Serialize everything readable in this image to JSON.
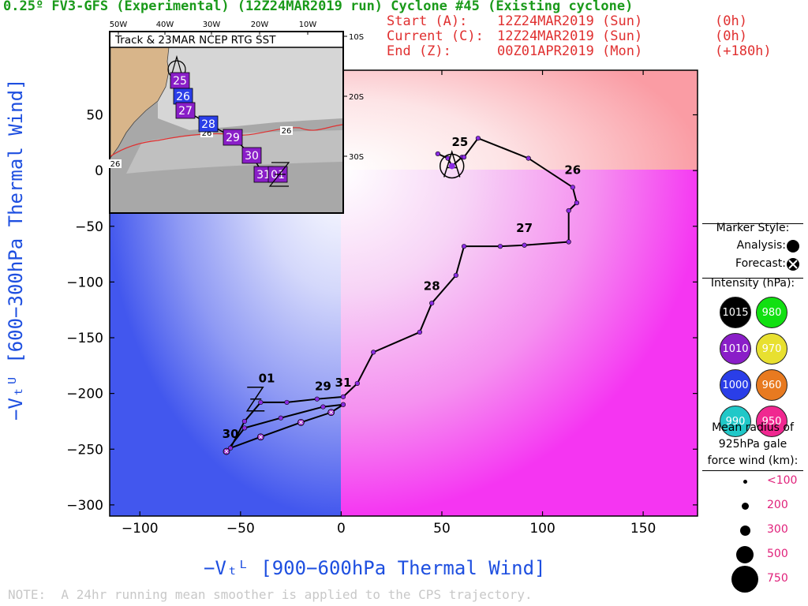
{
  "header": {
    "title": "0.25º FV3-GFS (Experimental) (12Z24MAR2019 run) Cyclone #45 (Existing cyclone)",
    "start_label": "Start (A):",
    "start_value": "12Z24MAR2019 (Sun)",
    "start_offset": "(0h)",
    "current_label": "Current (C):",
    "current_value": "12Z24MAR2019 (Sun)",
    "current_offset": "(0h)",
    "end_label": "End (Z):",
    "end_value": "00Z01APR2019 (Mon)",
    "end_offset": "(+180h)"
  },
  "note": "NOTE:  A 24hr running mean smoother is applied to the CPS trajectory.",
  "colors": {
    "title": "#1a9a1a",
    "info": "#e03030",
    "axis_label": "#1e4fe0",
    "track": "#000000",
    "analysis_marker": "#8a2be2",
    "forecast_marker": "#9b30d0"
  },
  "chart_data": {
    "type": "line",
    "xlabel": "−Vₜᴸ [900−600hPa Thermal Wind]",
    "ylabel": "−Vₜᵁ [600−300hPa Thermal Wind]",
    "xlim": [
      -115,
      177
    ],
    "ylim": [
      -310,
      90
    ],
    "xticks": [
      -100,
      -50,
      0,
      50,
      100,
      150
    ],
    "yticks": [
      50,
      0,
      -50,
      -100,
      -150,
      -200,
      -250,
      -300
    ],
    "xtick_labels": [
      "−100",
      "−50",
      "0",
      "50",
      "100",
      "150"
    ],
    "ytick_labels": [
      "50",
      "0",
      "−50",
      "−100",
      "−150",
      "−200",
      "−250",
      "−300"
    ],
    "series": [
      {
        "points": [
          [
            48,
            15
          ],
          [
            53,
            11
          ],
          [
            55,
            4
          ],
          [
            60,
            12
          ],
          [
            61,
            12
          ],
          [
            68,
            29
          ],
          [
            93,
            11
          ],
          [
            115,
            -15
          ],
          [
            117,
            -29
          ],
          [
            113,
            -36
          ],
          [
            113,
            -64
          ],
          [
            91,
            -67
          ],
          [
            79,
            -68
          ],
          [
            61,
            -68
          ],
          [
            57,
            -94
          ],
          [
            45,
            -119
          ],
          [
            39,
            -145
          ],
          [
            16,
            -163
          ],
          [
            8,
            -191
          ],
          [
            1,
            -203
          ],
          [
            -12,
            -205
          ],
          [
            -27,
            -208
          ],
          [
            -40,
            -208
          ],
          [
            -48,
            -225
          ],
          [
            -55,
            -249
          ],
          [
            -40,
            -239
          ],
          [
            -20,
            -226
          ],
          [
            -5,
            -217
          ],
          [
            1,
            -210
          ],
          [
            -9,
            -212
          ],
          [
            -30,
            -222
          ],
          [
            -48,
            -231
          ],
          [
            -57,
            -252
          ]
        ],
        "forecast_points": [
          [
            -40,
            -239
          ],
          [
            -20,
            -226
          ],
          [
            -5,
            -217
          ],
          [
            -57,
            -252
          ]
        ]
      }
    ],
    "day_labels": [
      {
        "text": "25",
        "x": 59,
        "y": 22
      },
      {
        "text": "26",
        "x": 115,
        "y": -3
      },
      {
        "text": "27",
        "x": 91,
        "y": -55
      },
      {
        "text": "28",
        "x": 45,
        "y": -107
      },
      {
        "text": "29",
        "x": -9,
        "y": -197
      },
      {
        "text": "31",
        "x": 1,
        "y": -194
      },
      {
        "text": "01",
        "x": -37,
        "y": -190
      },
      {
        "text": "30",
        "x": -55,
        "y": -240
      }
    ],
    "markers": {
      "A": {
        "x": 55,
        "y": 4
      },
      "C": {
        "x": 55,
        "y": 4
      },
      "Z": {
        "x": -42,
        "y": -205
      }
    },
    "background": "Quadrant shading: blue (cold core) left of 0 Vₜᴸ, pink (warm core) right; red upper-right, magenta lower-right."
  },
  "inset": {
    "title": "Track & 23MAR NCEP RTG SST",
    "lon_ticks": [
      "50W",
      "40W",
      "30W",
      "20W",
      "10W"
    ],
    "lat_ticks": [
      "10S",
      "20S",
      "30S"
    ],
    "sst_labels": [
      "26",
      "26",
      "26"
    ],
    "track": [
      {
        "day": "25",
        "color": "#8a1ec8"
      },
      {
        "day": "26",
        "color": "#2a3ee8"
      },
      {
        "day": "27",
        "color": "#8a1ec8"
      },
      {
        "day": "28",
        "color": "#2a3ee8"
      },
      {
        "day": "29",
        "color": "#8a1ec8"
      },
      {
        "day": "30",
        "color": "#8a1ec8"
      },
      {
        "day": "31",
        "color": "#8a1ec8"
      },
      {
        "day": "01",
        "color": "#8a1ec8"
      }
    ]
  },
  "legend": {
    "marker_style_label": "Marker Style:",
    "analysis_label": "Analysis:",
    "forecast_label": "Forecast:",
    "intensity_label": "Intensity (hPa):",
    "intensity": [
      {
        "value": "1015",
        "color": "#000000"
      },
      {
        "value": "980",
        "color": "#11e011"
      },
      {
        "value": "1010",
        "color": "#8a1ec8"
      },
      {
        "value": "970",
        "color": "#e8e030"
      },
      {
        "value": "1000",
        "color": "#2a3ee8"
      },
      {
        "value": "960",
        "color": "#e87a20"
      },
      {
        "value": "990",
        "color": "#20c8c8"
      },
      {
        "value": "950",
        "color": "#f02890"
      }
    ],
    "radius_label_1": "Mean radius of",
    "radius_label_2": "925hPa gale",
    "radius_label_3": "force wind (km):",
    "radius": [
      {
        "label": "<100",
        "size": 5
      },
      {
        "label": "200",
        "size": 9
      },
      {
        "label": "300",
        "size": 13
      },
      {
        "label": "500",
        "size": 22
      },
      {
        "label": "750",
        "size": 34
      }
    ]
  }
}
